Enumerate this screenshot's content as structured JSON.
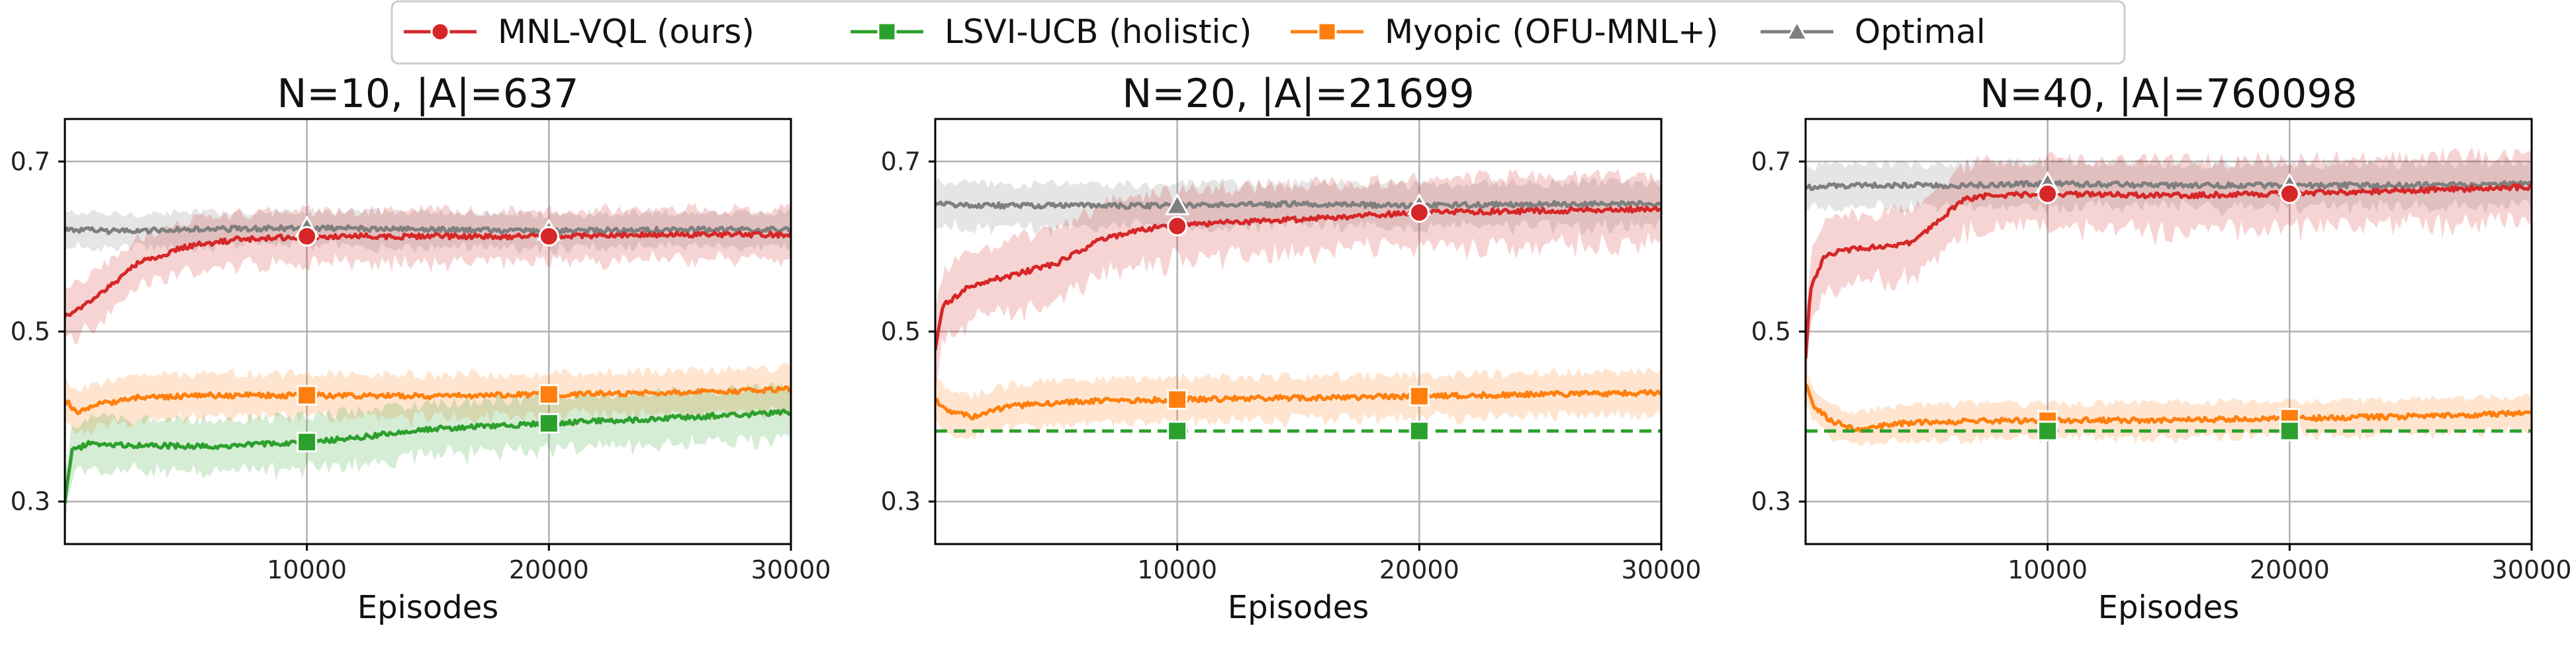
{
  "colors": {
    "mnl_vql": "#d62728",
    "lsvi_ucb": "#2ca02c",
    "myopic": "#ff7f0e",
    "optimal": "#7f7f7f"
  },
  "legend": {
    "placement": "top-center",
    "entries": [
      {
        "label": "MNL-VQL (ours)",
        "color": "#d62728",
        "marker": "circle",
        "line": "solid"
      },
      {
        "label": "LSVI-UCB (holistic)",
        "color": "#2ca02c",
        "marker": "square",
        "line": "solid"
      },
      {
        "label": "Myopic (OFU-MNL+)",
        "color": "#ff7f0e",
        "marker": "square",
        "line": "solid"
      },
      {
        "label": "Optimal",
        "color": "#7f7f7f",
        "marker": "triangle",
        "line": "solid"
      }
    ]
  },
  "chart_data": [
    {
      "type": "line",
      "title": "N=10, |A|=637",
      "xlabel": "Episodes",
      "ylabel": "",
      "xlim": [
        0,
        30000
      ],
      "ylim": [
        0.25,
        0.75
      ],
      "xticks": [
        10000,
        20000,
        30000
      ],
      "yticks": [
        0.3,
        0.5,
        0.7
      ],
      "grid": true,
      "series": [
        {
          "name": "Optimal",
          "color": "#7f7f7f",
          "marker": "triangle",
          "dashed": false,
          "band": 0.02,
          "x": [
            0,
            2000,
            5000,
            10000,
            15000,
            20000,
            25000,
            30000
          ],
          "y": [
            0.62,
            0.618,
            0.62,
            0.622,
            0.62,
            0.618,
            0.62,
            0.62
          ]
        },
        {
          "name": "MNL-VQL (ours)",
          "color": "#d62728",
          "marker": "circle",
          "dashed": false,
          "band": 0.03,
          "x": [
            0,
            500,
            1500,
            3000,
            5000,
            7000,
            10000,
            15000,
            20000,
            25000,
            30000
          ],
          "y": [
            0.52,
            0.525,
            0.545,
            0.58,
            0.6,
            0.608,
            0.612,
            0.612,
            0.612,
            0.614,
            0.614
          ]
        },
        {
          "name": "Myopic (OFU-MNL+)",
          "color": "#ff7f0e",
          "marker": "square",
          "dashed": false,
          "band": 0.025,
          "x": [
            0,
            500,
            1500,
            3000,
            6000,
            10000,
            15000,
            20000,
            25000,
            30000
          ],
          "y": [
            0.42,
            0.405,
            0.415,
            0.422,
            0.425,
            0.425,
            0.424,
            0.426,
            0.428,
            0.432
          ]
        },
        {
          "name": "LSVI-UCB (holistic)",
          "color": "#2ca02c",
          "marker": "square",
          "dashed": false,
          "band": 0.03,
          "x": [
            0,
            300,
            1000,
            3000,
            6000,
            10000,
            12000,
            15000,
            20000,
            25000,
            30000
          ],
          "y": [
            0.3,
            0.36,
            0.368,
            0.366,
            0.365,
            0.37,
            0.375,
            0.385,
            0.392,
            0.398,
            0.405
          ]
        }
      ],
      "markers_at": [
        10000,
        20000
      ]
    },
    {
      "type": "line",
      "title": "N=20, |A|=21699",
      "xlabel": "Episodes",
      "ylabel": "",
      "xlim": [
        0,
        30000
      ],
      "ylim": [
        0.25,
        0.75
      ],
      "xticks": [
        10000,
        20000,
        30000
      ],
      "yticks": [
        0.3,
        0.5,
        0.7
      ],
      "grid": true,
      "series": [
        {
          "name": "Optimal",
          "color": "#7f7f7f",
          "marker": "triangle",
          "dashed": false,
          "band": 0.025,
          "x": [
            0,
            3000,
            6000,
            10000,
            15000,
            20000,
            25000,
            30000
          ],
          "y": [
            0.65,
            0.648,
            0.648,
            0.648,
            0.65,
            0.648,
            0.65,
            0.65
          ]
        },
        {
          "name": "MNL-VQL (ours)",
          "color": "#d62728",
          "marker": "circle",
          "dashed": false,
          "band": 0.04,
          "x": [
            0,
            300,
            1500,
            3000,
            5000,
            7000,
            9000,
            12000,
            15000,
            20000,
            25000,
            30000
          ],
          "y": [
            0.48,
            0.53,
            0.555,
            0.565,
            0.58,
            0.61,
            0.622,
            0.628,
            0.632,
            0.64,
            0.642,
            0.644
          ]
        },
        {
          "name": "Myopic (OFU-MNL+)",
          "color": "#ff7f0e",
          "marker": "square",
          "dashed": false,
          "band": 0.025,
          "x": [
            0,
            500,
            1500,
            3000,
            6000,
            10000,
            15000,
            20000,
            25000,
            30000
          ],
          "y": [
            0.42,
            0.405,
            0.4,
            0.412,
            0.418,
            0.42,
            0.422,
            0.424,
            0.426,
            0.428
          ]
        },
        {
          "name": "LSVI-UCB (holistic)",
          "color": "#2ca02c",
          "marker": "square",
          "dashed": true,
          "band": 0,
          "x": [
            0,
            30000
          ],
          "y": [
            0.383,
            0.383
          ]
        }
      ],
      "markers_at": [
        10000,
        20000
      ]
    },
    {
      "type": "line",
      "title": "N=40, |A|=760098",
      "xlabel": "Episodes",
      "ylabel": "",
      "xlim": [
        0,
        30000
      ],
      "ylim": [
        0.25,
        0.75
      ],
      "xticks": [
        10000,
        20000,
        30000
      ],
      "yticks": [
        0.3,
        0.5,
        0.7
      ],
      "grid": true,
      "series": [
        {
          "name": "Optimal",
          "color": "#7f7f7f",
          "marker": "triangle",
          "dashed": false,
          "band": 0.025,
          "x": [
            0,
            3000,
            6000,
            10000,
            15000,
            20000,
            25000,
            30000
          ],
          "y": [
            0.67,
            0.672,
            0.672,
            0.674,
            0.672,
            0.672,
            0.672,
            0.674
          ]
        },
        {
          "name": "MNL-VQL (ours)",
          "color": "#d62728",
          "marker": "circle",
          "dashed": false,
          "band": 0.04,
          "x": [
            0,
            200,
            800,
            1500,
            3000,
            4500,
            5500,
            6500,
            7500,
            10000,
            15000,
            20000,
            25000,
            30000
          ],
          "y": [
            0.47,
            0.55,
            0.59,
            0.595,
            0.6,
            0.605,
            0.63,
            0.655,
            0.66,
            0.662,
            0.66,
            0.662,
            0.666,
            0.67
          ]
        },
        {
          "name": "Myopic (OFU-MNL+)",
          "color": "#ff7f0e",
          "marker": "square",
          "dashed": false,
          "band": 0.02,
          "x": [
            0,
            300,
            1000,
            2000,
            4000,
            7000,
            10000,
            15000,
            20000,
            25000,
            30000
          ],
          "y": [
            0.44,
            0.415,
            0.395,
            0.385,
            0.392,
            0.395,
            0.395,
            0.396,
            0.398,
            0.4,
            0.404
          ]
        },
        {
          "name": "LSVI-UCB (holistic)",
          "color": "#2ca02c",
          "marker": "square",
          "dashed": true,
          "band": 0,
          "x": [
            0,
            30000
          ],
          "y": [
            0.383,
            0.383
          ]
        }
      ],
      "markers_at": [
        10000,
        20000
      ]
    }
  ]
}
